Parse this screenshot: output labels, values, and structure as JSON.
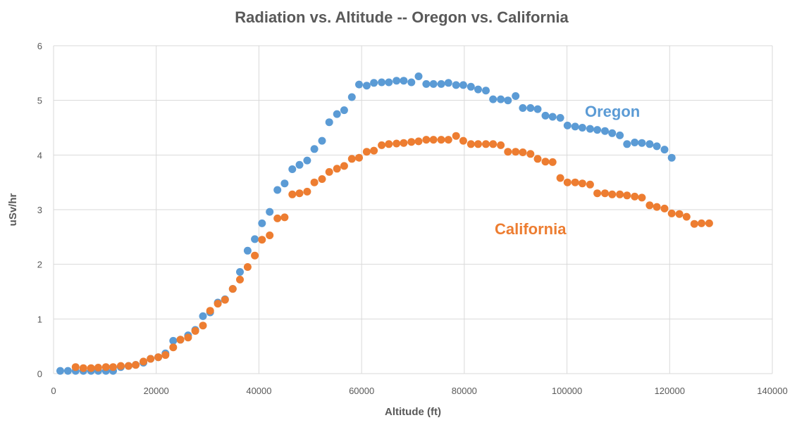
{
  "chart_data": {
    "type": "scatter",
    "title": "Radiation vs. Altitude -- Oregon vs. California",
    "xlabel": "Altitude (ft)",
    "ylabel": "uSv/hr",
    "xlim": [
      0,
      140000
    ],
    "ylim": [
      0,
      6
    ],
    "xticks": [
      0,
      20000,
      40000,
      60000,
      80000,
      100000,
      120000,
      140000
    ],
    "yticks": [
      0,
      1,
      2,
      3,
      4,
      5,
      6
    ],
    "grid": true,
    "legend": "none",
    "series": [
      {
        "name": "Oregon",
        "color": "#5B9BD5",
        "points": [
          [
            1300,
            0.05
          ],
          [
            2800,
            0.05
          ],
          [
            4300,
            0.05
          ],
          [
            5800,
            0.05
          ],
          [
            7300,
            0.05
          ],
          [
            8700,
            0.05
          ],
          [
            10200,
            0.05
          ],
          [
            11600,
            0.05
          ],
          [
            13100,
            0.12
          ],
          [
            14600,
            0.14
          ],
          [
            16000,
            0.16
          ],
          [
            17500,
            0.2
          ],
          [
            18900,
            0.27
          ],
          [
            20400,
            0.3
          ],
          [
            21800,
            0.37
          ],
          [
            23300,
            0.6
          ],
          [
            24700,
            0.62
          ],
          [
            26200,
            0.7
          ],
          [
            27600,
            0.8
          ],
          [
            29100,
            1.05
          ],
          [
            30500,
            1.12
          ],
          [
            32000,
            1.3
          ],
          [
            33400,
            1.36
          ],
          [
            34900,
            1.55
          ],
          [
            36300,
            1.86
          ],
          [
            37800,
            2.25
          ],
          [
            39200,
            2.46
          ],
          [
            40600,
            2.75
          ],
          [
            42100,
            2.96
          ],
          [
            43600,
            3.36
          ],
          [
            45000,
            3.48
          ],
          [
            46500,
            3.74
          ],
          [
            47900,
            3.82
          ],
          [
            49400,
            3.9
          ],
          [
            50800,
            4.11
          ],
          [
            52300,
            4.26
          ],
          [
            53700,
            4.6
          ],
          [
            55200,
            4.75
          ],
          [
            56600,
            4.82
          ],
          [
            58100,
            5.06
          ],
          [
            59500,
            5.29
          ],
          [
            61000,
            5.27
          ],
          [
            62400,
            5.32
          ],
          [
            63900,
            5.33
          ],
          [
            65300,
            5.33
          ],
          [
            66800,
            5.36
          ],
          [
            68200,
            5.36
          ],
          [
            69700,
            5.33
          ],
          [
            71100,
            5.44
          ],
          [
            72600,
            5.3
          ],
          [
            74000,
            5.3
          ],
          [
            75500,
            5.3
          ],
          [
            76900,
            5.32
          ],
          [
            78400,
            5.28
          ],
          [
            79800,
            5.28
          ],
          [
            81300,
            5.25
          ],
          [
            82700,
            5.2
          ],
          [
            84200,
            5.18
          ],
          [
            85600,
            5.02
          ],
          [
            87100,
            5.02
          ],
          [
            88500,
            5.0
          ],
          [
            90000,
            5.08
          ],
          [
            91400,
            4.86
          ],
          [
            92900,
            4.86
          ],
          [
            94300,
            4.84
          ],
          [
            95800,
            4.72
          ],
          [
            97200,
            4.7
          ],
          [
            98700,
            4.68
          ],
          [
            100100,
            4.54
          ],
          [
            101600,
            4.52
          ],
          [
            103000,
            4.5
          ],
          [
            104500,
            4.48
          ],
          [
            105900,
            4.46
          ],
          [
            107400,
            4.44
          ],
          [
            108800,
            4.4
          ],
          [
            110300,
            4.36
          ],
          [
            111700,
            4.2
          ],
          [
            113200,
            4.23
          ],
          [
            114600,
            4.22
          ],
          [
            116100,
            4.2
          ],
          [
            117500,
            4.16
          ],
          [
            119000,
            4.1
          ],
          [
            120400,
            3.95
          ]
        ]
      },
      {
        "name": "California",
        "color": "#ED7D31",
        "points": [
          [
            4300,
            0.12
          ],
          [
            5800,
            0.1
          ],
          [
            7300,
            0.1
          ],
          [
            8700,
            0.11
          ],
          [
            10200,
            0.12
          ],
          [
            11600,
            0.12
          ],
          [
            13100,
            0.14
          ],
          [
            14600,
            0.14
          ],
          [
            16000,
            0.16
          ],
          [
            17500,
            0.22
          ],
          [
            18900,
            0.27
          ],
          [
            20400,
            0.3
          ],
          [
            21800,
            0.34
          ],
          [
            23300,
            0.48
          ],
          [
            24700,
            0.62
          ],
          [
            26200,
            0.66
          ],
          [
            27600,
            0.78
          ],
          [
            29100,
            0.88
          ],
          [
            30500,
            1.15
          ],
          [
            32000,
            1.28
          ],
          [
            33400,
            1.35
          ],
          [
            34900,
            1.55
          ],
          [
            36300,
            1.72
          ],
          [
            37800,
            1.95
          ],
          [
            39200,
            2.16
          ],
          [
            40600,
            2.45
          ],
          [
            42100,
            2.53
          ],
          [
            43600,
            2.84
          ],
          [
            45000,
            2.86
          ],
          [
            46500,
            3.28
          ],
          [
            47900,
            3.3
          ],
          [
            49400,
            3.33
          ],
          [
            50800,
            3.5
          ],
          [
            52300,
            3.56
          ],
          [
            53700,
            3.69
          ],
          [
            55200,
            3.75
          ],
          [
            56600,
            3.8
          ],
          [
            58100,
            3.93
          ],
          [
            59500,
            3.95
          ],
          [
            61000,
            4.06
          ],
          [
            62400,
            4.08
          ],
          [
            63900,
            4.18
          ],
          [
            65300,
            4.2
          ],
          [
            66800,
            4.21
          ],
          [
            68200,
            4.22
          ],
          [
            69700,
            4.24
          ],
          [
            71100,
            4.25
          ],
          [
            72600,
            4.28
          ],
          [
            74000,
            4.28
          ],
          [
            75500,
            4.28
          ],
          [
            76900,
            4.28
          ],
          [
            78400,
            4.35
          ],
          [
            79800,
            4.26
          ],
          [
            81300,
            4.2
          ],
          [
            82700,
            4.2
          ],
          [
            84200,
            4.2
          ],
          [
            85600,
            4.2
          ],
          [
            87100,
            4.18
          ],
          [
            88500,
            4.06
          ],
          [
            90000,
            4.06
          ],
          [
            91400,
            4.05
          ],
          [
            92900,
            4.02
          ],
          [
            94300,
            3.93
          ],
          [
            95800,
            3.88
          ],
          [
            97200,
            3.87
          ],
          [
            98700,
            3.58
          ],
          [
            100100,
            3.5
          ],
          [
            101600,
            3.5
          ],
          [
            103000,
            3.48
          ],
          [
            104500,
            3.46
          ],
          [
            105900,
            3.3
          ],
          [
            107400,
            3.3
          ],
          [
            108800,
            3.28
          ],
          [
            110300,
            3.28
          ],
          [
            111700,
            3.26
          ],
          [
            113200,
            3.24
          ],
          [
            114600,
            3.22
          ],
          [
            116100,
            3.08
          ],
          [
            117500,
            3.05
          ],
          [
            119000,
            3.02
          ],
          [
            120400,
            2.93
          ],
          [
            121900,
            2.92
          ],
          [
            123300,
            2.87
          ],
          [
            124800,
            2.74
          ],
          [
            126200,
            2.75
          ],
          [
            127700,
            2.75
          ]
        ]
      }
    ]
  }
}
